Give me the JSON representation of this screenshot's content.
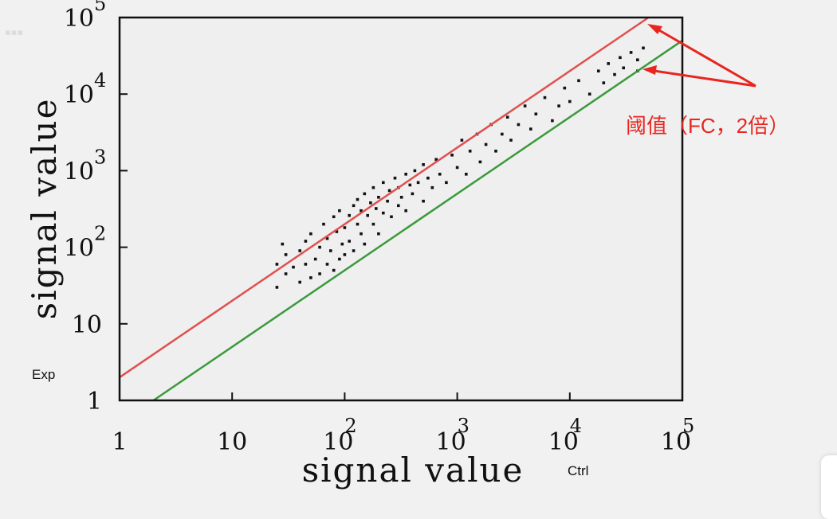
{
  "chart_data": {
    "type": "scatter",
    "scale": "log-log",
    "xlim": [
      1,
      100000
    ],
    "ylim": [
      1,
      100000
    ],
    "x_ticks": [
      {
        "label": "1"
      },
      {
        "label": "10"
      },
      {
        "label": "10",
        "exp": "2"
      },
      {
        "label": "10",
        "exp": "3"
      },
      {
        "label": "10",
        "exp": "4"
      },
      {
        "label": "10",
        "exp": "5"
      }
    ],
    "y_ticks": [
      {
        "label": "1"
      },
      {
        "label": "10"
      },
      {
        "label": "10",
        "exp": "2"
      },
      {
        "label": "10",
        "exp": "3"
      },
      {
        "label": "10",
        "exp": "4"
      },
      {
        "label": "10",
        "exp": "5"
      }
    ],
    "xlabel": "signal value",
    "xlabel_small": "Ctrl",
    "ylabel": "signal value",
    "ylabel_small": "Exp",
    "threshold_lines": [
      {
        "color": "#e05050",
        "fold_change": 2
      },
      {
        "color": "#3a9a3a",
        "fold_change": 0.5
      }
    ],
    "annotation": "阈值（FC，2倍）",
    "annotation_color": "#e8251f",
    "points": [
      [
        25,
        60
      ],
      [
        25,
        30
      ],
      [
        28,
        110
      ],
      [
        30,
        45
      ],
      [
        30,
        80
      ],
      [
        35,
        55
      ],
      [
        40,
        35
      ],
      [
        40,
        90
      ],
      [
        45,
        120
      ],
      [
        45,
        60
      ],
      [
        50,
        40
      ],
      [
        50,
        150
      ],
      [
        55,
        70
      ],
      [
        60,
        100
      ],
      [
        60,
        45
      ],
      [
        65,
        200
      ],
      [
        70,
        60
      ],
      [
        70,
        130
      ],
      [
        75,
        90
      ],
      [
        80,
        250
      ],
      [
        80,
        50
      ],
      [
        85,
        160
      ],
      [
        90,
        70
      ],
      [
        90,
        300
      ],
      [
        95,
        110
      ],
      [
        100,
        180
      ],
      [
        100,
        80
      ],
      [
        110,
        260
      ],
      [
        110,
        120
      ],
      [
        120,
        350
      ],
      [
        120,
        90
      ],
      [
        130,
        200
      ],
      [
        130,
        420
      ],
      [
        140,
        150
      ],
      [
        140,
        300
      ],
      [
        150,
        500
      ],
      [
        150,
        110
      ],
      [
        160,
        260
      ],
      [
        170,
        380
      ],
      [
        180,
        200
      ],
      [
        180,
        600
      ],
      [
        190,
        320
      ],
      [
        200,
        450
      ],
      [
        200,
        150
      ],
      [
        220,
        280
      ],
      [
        220,
        700
      ],
      [
        240,
        400
      ],
      [
        250,
        550
      ],
      [
        260,
        250
      ],
      [
        280,
        800
      ],
      [
        300,
        350
      ],
      [
        300,
        600
      ],
      [
        320,
        450
      ],
      [
        350,
        900
      ],
      [
        350,
        300
      ],
      [
        380,
        650
      ],
      [
        400,
        500
      ],
      [
        420,
        1000
      ],
      [
        450,
        700
      ],
      [
        500,
        400
      ],
      [
        500,
        1200
      ],
      [
        550,
        800
      ],
      [
        600,
        600
      ],
      [
        650,
        1400
      ],
      [
        700,
        900
      ],
      [
        800,
        700
      ],
      [
        900,
        1600
      ],
      [
        1000,
        1100
      ],
      [
        1100,
        2500
      ],
      [
        1200,
        900
      ],
      [
        1300,
        1800
      ],
      [
        1500,
        3000
      ],
      [
        1600,
        1300
      ],
      [
        1800,
        2200
      ],
      [
        2000,
        4000
      ],
      [
        2200,
        1800
      ],
      [
        2500,
        3000
      ],
      [
        2800,
        5000
      ],
      [
        3000,
        2500
      ],
      [
        3500,
        4000
      ],
      [
        4000,
        7000
      ],
      [
        4500,
        3500
      ],
      [
        5000,
        5500
      ],
      [
        6000,
        9000
      ],
      [
        7000,
        4500
      ],
      [
        8000,
        7000
      ],
      [
        9000,
        12000
      ],
      [
        10000,
        8000
      ],
      [
        12000,
        15000
      ],
      [
        15000,
        10000
      ],
      [
        18000,
        20000
      ],
      [
        20000,
        14000
      ],
      [
        22000,
        25000
      ],
      [
        25000,
        18000
      ],
      [
        28000,
        30000
      ],
      [
        30000,
        22000
      ],
      [
        35000,
        35000
      ],
      [
        40000,
        28000
      ],
      [
        45000,
        40000
      ],
      [
        40000,
        20000
      ]
    ]
  }
}
